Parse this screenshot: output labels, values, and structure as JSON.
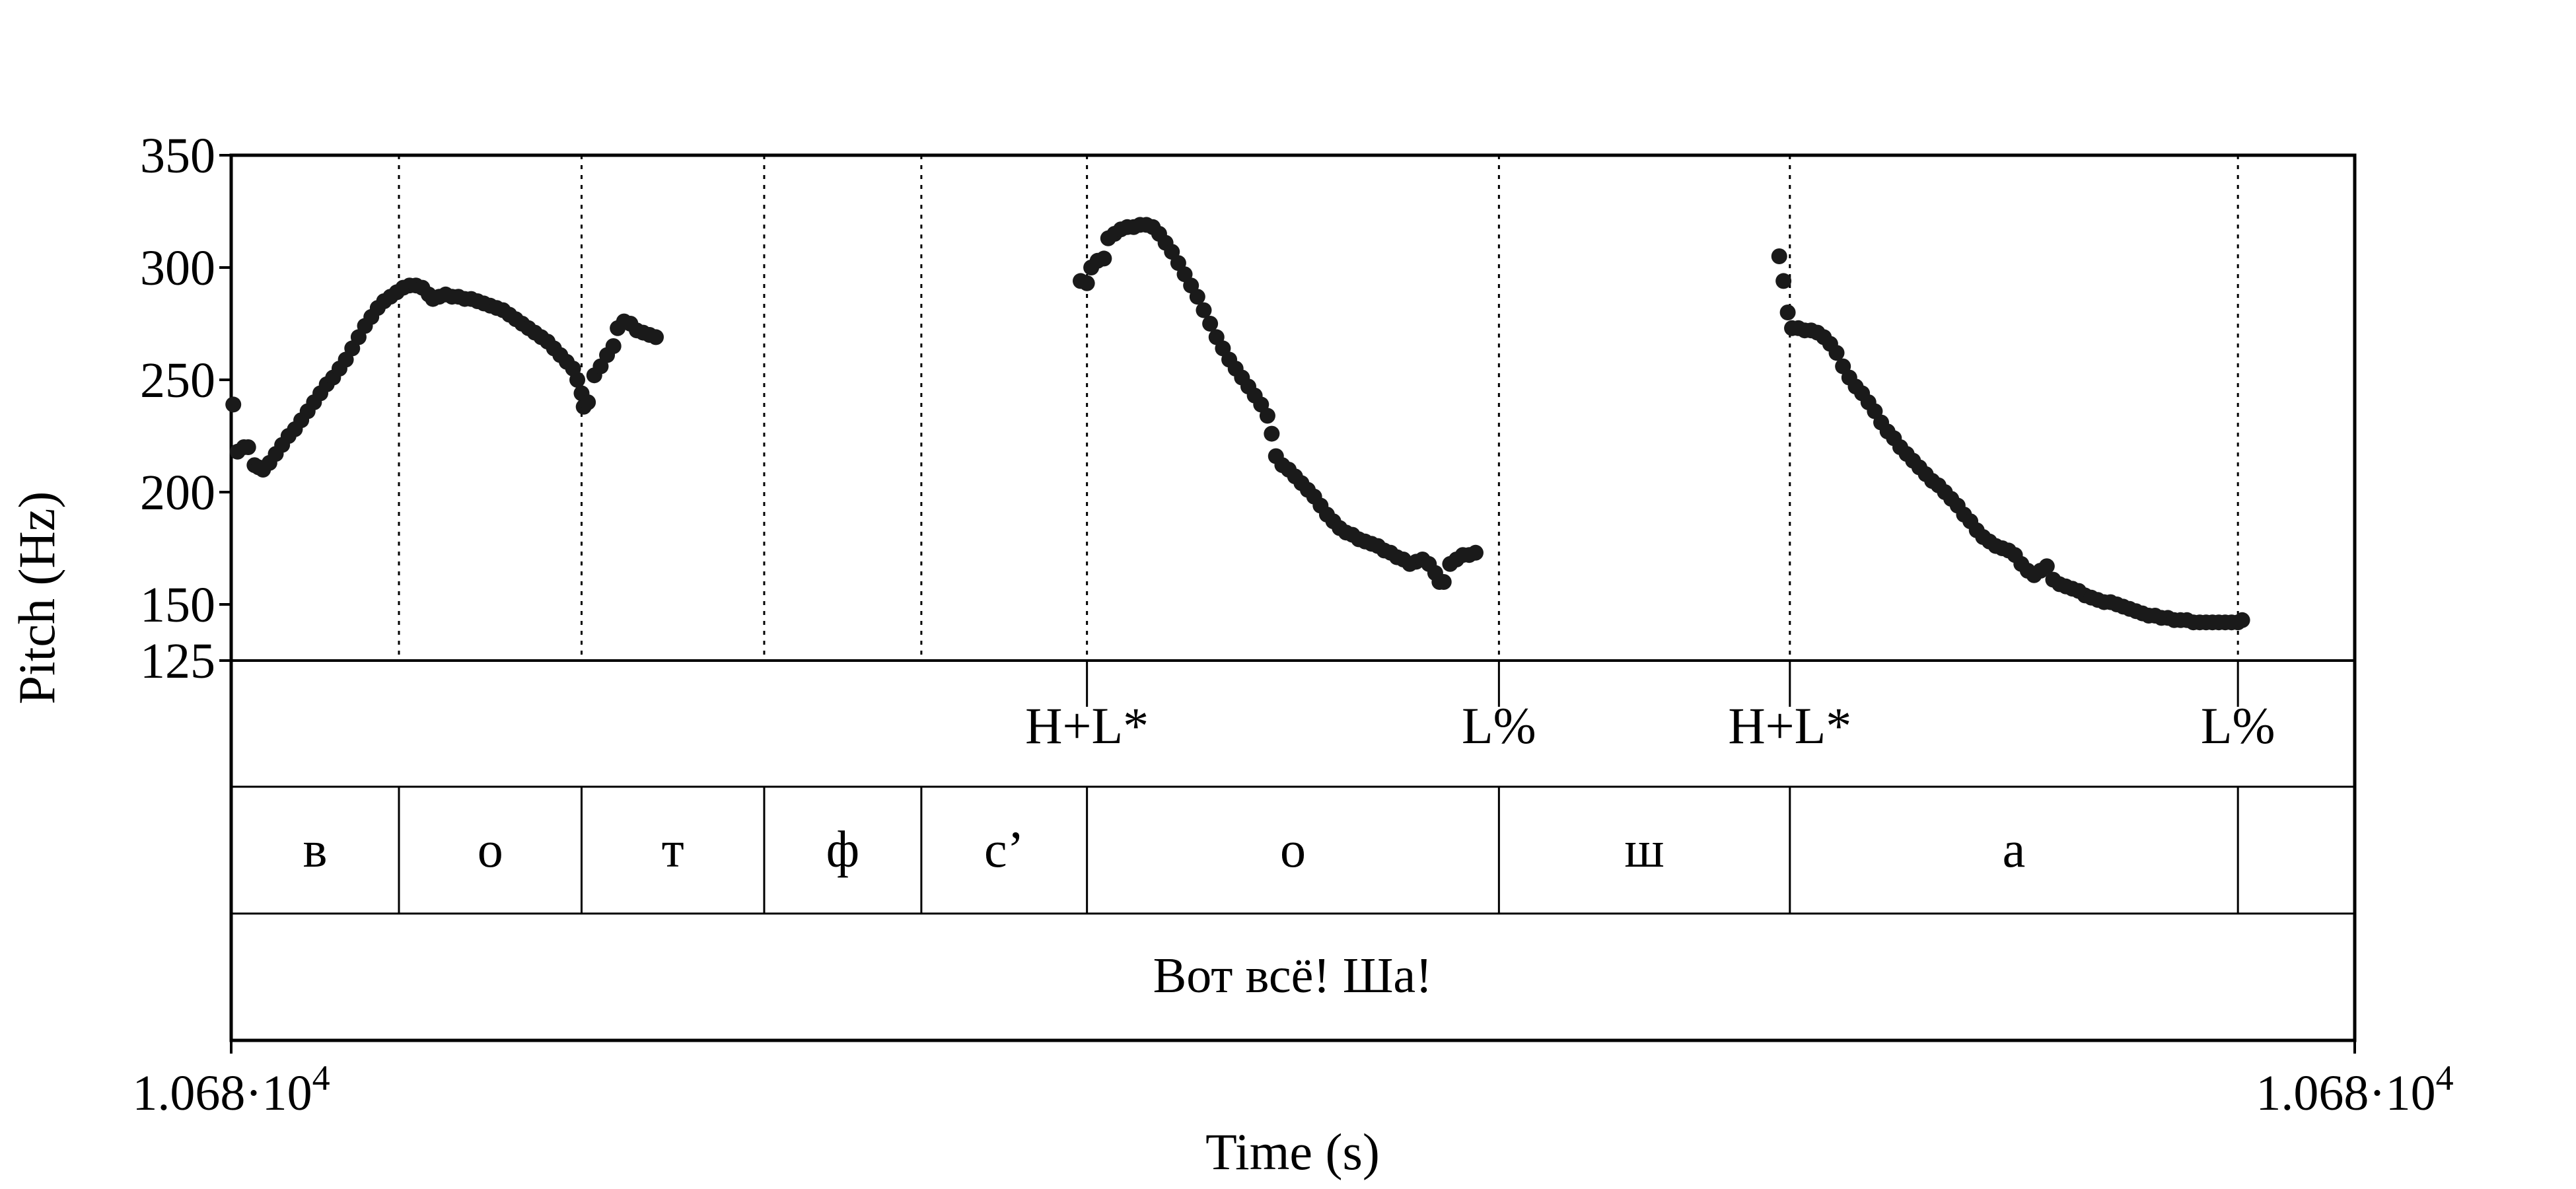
{
  "chart_data": {
    "type": "scatter",
    "title": "",
    "xlabel": "Time (s)",
    "ylabel": "Pitch (Hz)",
    "xlim": [
      0,
      1
    ],
    "ylim": [
      125,
      350
    ],
    "x_tick_labels": [
      {
        "x": 0,
        "label": "1.068·10",
        "exp": "4"
      },
      {
        "x": 1,
        "label": "1.068·10",
        "exp": "4"
      }
    ],
    "y_ticks": [
      125,
      150,
      200,
      250,
      300,
      350
    ],
    "grid": false,
    "boundaries": [
      0.079,
      0.165,
      0.251,
      0.325,
      0.403,
      0.597,
      0.734,
      0.945
    ],
    "tones_tier": [
      {
        "x": 0.403,
        "label": "H+L*"
      },
      {
        "x": 0.597,
        "label": "L%"
      },
      {
        "x": 0.734,
        "label": "H+L*"
      },
      {
        "x": 0.945,
        "label": "L%"
      }
    ],
    "segments_tier": [
      {
        "from": 0.0,
        "to": 0.079,
        "label": "в"
      },
      {
        "from": 0.079,
        "to": 0.165,
        "label": "о"
      },
      {
        "from": 0.165,
        "to": 0.251,
        "label": "т"
      },
      {
        "from": 0.251,
        "to": 0.325,
        "label": "ф"
      },
      {
        "from": 0.325,
        "to": 0.403,
        "label": "с’"
      },
      {
        "from": 0.403,
        "to": 0.597,
        "label": "о"
      },
      {
        "from": 0.597,
        "to": 0.734,
        "label": "ш"
      },
      {
        "from": 0.734,
        "to": 0.945,
        "label": "а"
      },
      {
        "from": 0.945,
        "to": 1.0,
        "label": ""
      }
    ],
    "sentence_tier": "Вот всё! Ша!",
    "series": [
      {
        "points": [
          [
            0.001,
            239
          ],
          [
            0.003,
            218
          ],
          [
            0.006,
            220
          ],
          [
            0.008,
            220
          ],
          [
            0.011,
            212
          ],
          [
            0.013,
            211
          ],
          [
            0.015,
            210
          ],
          [
            0.018,
            213
          ],
          [
            0.021,
            217
          ],
          [
            0.024,
            221
          ],
          [
            0.027,
            225
          ],
          [
            0.03,
            228
          ],
          [
            0.033,
            232
          ],
          [
            0.036,
            236
          ],
          [
            0.039,
            240
          ],
          [
            0.042,
            244
          ],
          [
            0.045,
            248
          ],
          [
            0.048,
            251
          ],
          [
            0.051,
            255
          ],
          [
            0.054,
            259
          ],
          [
            0.057,
            264
          ],
          [
            0.06,
            269
          ],
          [
            0.063,
            274
          ],
          [
            0.066,
            278
          ],
          [
            0.069,
            282
          ],
          [
            0.072,
            285
          ],
          [
            0.075,
            287
          ],
          [
            0.078,
            289
          ],
          [
            0.081,
            291
          ],
          [
            0.084,
            292
          ],
          [
            0.087,
            292
          ],
          [
            0.09,
            291
          ],
          [
            0.093,
            288
          ],
          [
            0.095,
            286
          ],
          [
            0.098,
            287
          ],
          [
            0.101,
            288
          ],
          [
            0.104,
            287
          ],
          [
            0.107,
            287
          ],
          [
            0.11,
            286
          ],
          [
            0.113,
            286
          ],
          [
            0.116,
            285
          ],
          [
            0.119,
            284
          ],
          [
            0.122,
            283
          ],
          [
            0.125,
            282
          ],
          [
            0.128,
            281
          ],
          [
            0.131,
            279
          ],
          [
            0.134,
            277
          ],
          [
            0.137,
            275
          ],
          [
            0.14,
            273
          ],
          [
            0.143,
            271
          ],
          [
            0.146,
            269
          ],
          [
            0.149,
            267
          ],
          [
            0.152,
            264
          ],
          [
            0.155,
            261
          ],
          [
            0.158,
            258
          ],
          [
            0.161,
            255
          ],
          [
            0.163,
            250
          ],
          [
            0.165,
            244
          ],
          [
            0.166,
            238
          ],
          [
            0.168,
            240
          ],
          [
            0.171,
            252
          ],
          [
            0.174,
            256
          ],
          [
            0.177,
            261
          ],
          [
            0.18,
            265
          ],
          [
            0.182,
            273
          ],
          [
            0.185,
            276
          ],
          [
            0.188,
            275
          ],
          [
            0.191,
            272
          ],
          [
            0.194,
            271
          ],
          [
            0.197,
            270
          ],
          [
            0.2,
            269
          ],
          [
            0.4,
            294
          ],
          [
            0.403,
            293
          ],
          [
            0.405,
            300
          ],
          [
            0.408,
            303
          ],
          [
            0.411,
            304
          ],
          [
            0.413,
            313
          ],
          [
            0.416,
            315
          ],
          [
            0.419,
            317
          ],
          [
            0.422,
            318
          ],
          [
            0.425,
            318
          ],
          [
            0.428,
            319
          ],
          [
            0.431,
            319
          ],
          [
            0.434,
            318
          ],
          [
            0.437,
            315
          ],
          [
            0.44,
            311
          ],
          [
            0.443,
            307
          ],
          [
            0.446,
            302
          ],
          [
            0.449,
            297
          ],
          [
            0.452,
            292
          ],
          [
            0.455,
            287
          ],
          [
            0.458,
            281
          ],
          [
            0.461,
            275
          ],
          [
            0.464,
            269
          ],
          [
            0.467,
            264
          ],
          [
            0.47,
            259
          ],
          [
            0.473,
            255
          ],
          [
            0.476,
            251
          ],
          [
            0.479,
            247
          ],
          [
            0.482,
            243
          ],
          [
            0.485,
            239
          ],
          [
            0.488,
            234
          ],
          [
            0.49,
            226
          ],
          [
            0.492,
            216
          ],
          [
            0.495,
            212
          ],
          [
            0.498,
            210
          ],
          [
            0.501,
            207
          ],
          [
            0.504,
            204
          ],
          [
            0.507,
            201
          ],
          [
            0.51,
            198
          ],
          [
            0.513,
            194
          ],
          [
            0.516,
            190
          ],
          [
            0.519,
            187
          ],
          [
            0.522,
            184
          ],
          [
            0.525,
            182
          ],
          [
            0.528,
            181
          ],
          [
            0.531,
            179
          ],
          [
            0.534,
            178
          ],
          [
            0.537,
            177
          ],
          [
            0.54,
            176
          ],
          [
            0.543,
            174
          ],
          [
            0.546,
            173
          ],
          [
            0.549,
            171
          ],
          [
            0.552,
            170
          ],
          [
            0.555,
            168
          ],
          [
            0.558,
            169
          ],
          [
            0.561,
            170
          ],
          [
            0.564,
            168
          ],
          [
            0.567,
            164
          ],
          [
            0.569,
            160
          ],
          [
            0.571,
            160
          ],
          [
            0.574,
            168
          ],
          [
            0.577,
            170
          ],
          [
            0.58,
            172
          ],
          [
            0.583,
            172
          ],
          [
            0.586,
            173
          ],
          [
            0.729,
            305
          ],
          [
            0.731,
            294
          ],
          [
            0.733,
            280
          ],
          [
            0.735,
            273
          ],
          [
            0.738,
            273
          ],
          [
            0.741,
            272
          ],
          [
            0.744,
            272
          ],
          [
            0.747,
            271
          ],
          [
            0.75,
            269
          ],
          [
            0.753,
            266
          ],
          [
            0.756,
            262
          ],
          [
            0.759,
            256
          ],
          [
            0.762,
            251
          ],
          [
            0.765,
            247
          ],
          [
            0.768,
            244
          ],
          [
            0.771,
            240
          ],
          [
            0.774,
            236
          ],
          [
            0.777,
            231
          ],
          [
            0.78,
            227
          ],
          [
            0.783,
            224
          ],
          [
            0.786,
            220
          ],
          [
            0.789,
            217
          ],
          [
            0.792,
            214
          ],
          [
            0.795,
            211
          ],
          [
            0.798,
            208
          ],
          [
            0.801,
            205
          ],
          [
            0.804,
            203
          ],
          [
            0.807,
            200
          ],
          [
            0.81,
            197
          ],
          [
            0.813,
            194
          ],
          [
            0.816,
            190
          ],
          [
            0.819,
            187
          ],
          [
            0.822,
            183
          ],
          [
            0.825,
            180
          ],
          [
            0.828,
            178
          ],
          [
            0.831,
            176
          ],
          [
            0.834,
            175
          ],
          [
            0.837,
            174
          ],
          [
            0.84,
            172
          ],
          [
            0.843,
            168
          ],
          [
            0.846,
            165
          ],
          [
            0.849,
            163
          ],
          [
            0.852,
            165
          ],
          [
            0.855,
            167
          ],
          [
            0.858,
            161
          ],
          [
            0.861,
            159
          ],
          [
            0.864,
            158
          ],
          [
            0.867,
            157
          ],
          [
            0.87,
            156
          ],
          [
            0.873,
            154
          ],
          [
            0.876,
            153
          ],
          [
            0.879,
            152
          ],
          [
            0.882,
            151
          ],
          [
            0.885,
            151
          ],
          [
            0.888,
            150
          ],
          [
            0.891,
            149
          ],
          [
            0.894,
            148
          ],
          [
            0.897,
            147
          ],
          [
            0.9,
            146
          ],
          [
            0.903,
            145
          ],
          [
            0.906,
            145
          ],
          [
            0.909,
            144
          ],
          [
            0.912,
            144
          ],
          [
            0.915,
            143
          ],
          [
            0.918,
            143
          ],
          [
            0.921,
            143
          ],
          [
            0.924,
            142
          ],
          [
            0.927,
            142
          ],
          [
            0.93,
            142
          ],
          [
            0.933,
            142
          ],
          [
            0.936,
            142
          ],
          [
            0.939,
            142
          ],
          [
            0.942,
            142
          ],
          [
            0.945,
            142
          ],
          [
            0.947,
            143
          ]
        ]
      }
    ]
  }
}
